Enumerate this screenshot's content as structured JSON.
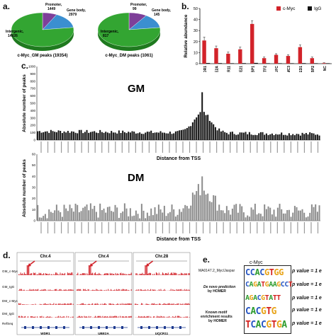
{
  "panels": {
    "a": {
      "letter": "a.",
      "pies": [
        {
          "caption": "c-Myc_GM peaks (19354)",
          "slices": [
            {
              "name": "Promoter",
              "value": 1449,
              "label_name": "Promoter,",
              "label_value": "1449",
              "color": "#7e3f99"
            },
            {
              "name": "Gene body",
              "value": 2979,
              "label_name": "Gene body,",
              "label_value": "2979",
              "color": "#3b8fd0"
            },
            {
              "name": "Intergenic",
              "value": 14926,
              "label_name": "Intergenic,",
              "label_value": "14926",
              "color": "#33a532"
            }
          ]
        },
        {
          "caption": "c-Myc_DM peaks (1061)",
          "slices": [
            {
              "name": "Promoter",
              "value": 99,
              "label_name": "Promoter,",
              "label_value": "99",
              "color": "#7e3f99"
            },
            {
              "name": "Gene body",
              "value": 145,
              "label_name": "Gene body,",
              "label_value": "145",
              "color": "#3b8fd0"
            },
            {
              "name": "Intergenic",
              "value": 817,
              "label_name": "Intergenic,",
              "label_value": "817",
              "color": "#33a532"
            }
          ]
        }
      ]
    },
    "b": {
      "letter": "b.",
      "ylabel": "Relative abundance",
      "legend": [
        {
          "name": "c-Myc",
          "color": "#d2232a"
        },
        {
          "name": "IgG",
          "color": "#111111"
        }
      ]
    },
    "c": {
      "letter": "c.",
      "ylabel": "Absolute number of peaks",
      "xlabel": "Distance from TSS",
      "gm_label": "GM",
      "dm_label": "DM",
      "gm_color": "#111111",
      "dm_color": "#8c8c8c"
    },
    "d": {
      "letter": "d.",
      "chroms": [
        "Chr.4",
        "Chr.4",
        "Chr.28"
      ],
      "tracks": [
        "GM_c-Myc",
        "GM_IgG",
        "DM_c-Myc",
        "DM_IgG",
        "RefSeq"
      ],
      "genes": [
        "WDR1",
        "UBE2A",
        "UQCR11"
      ],
      "track_color": "#d2232a",
      "arrow_color": "#d2232a"
    },
    "e": {
      "letter": "e.",
      "title": "c-Myc",
      "matrix_label": "MA0147.2_Myc/Jaspar",
      "denovo_label_1": "De novo prediction",
      "denovo_label_2": "by HOMER",
      "known_label_1": "Known motif",
      "known_label_2": "enrichment results",
      "known_label_3": "by HOMER",
      "motifs": [
        "CCACGTGG",
        "CAGATGAAGCCT",
        "AGACGTATT",
        "CACGTG",
        "TCACGTGA"
      ],
      "pvalues": [
        "p value = 1 e",
        "p value = 1 e",
        "p value = 1 e",
        "p value = 1 e",
        "p value = 1 e"
      ]
    }
  },
  "chart_data": [
    {
      "type": "pie",
      "title": "c-Myc_GM peaks (19354)",
      "categories": [
        "Promoter",
        "Gene body",
        "Intergenic"
      ],
      "values": [
        1449,
        2979,
        14926
      ]
    },
    {
      "type": "pie",
      "title": "c-Myc_DM peaks (1061)",
      "categories": [
        "Promoter",
        "Gene body",
        "Intergenic"
      ],
      "values": [
        99,
        145,
        817
      ]
    },
    {
      "type": "bar",
      "ylabel": "Relative abundance",
      "ylim": [
        0,
        50
      ],
      "yticks": [
        0,
        10,
        20,
        30,
        40,
        50
      ],
      "categories": [
        "WDR1",
        "UBE2A",
        "UQCR11",
        "ZFYVE21",
        "FUBP1",
        "ATF2",
        "NDUFC",
        "HEMC3",
        "MED1",
        "RBBP2",
        "NC"
      ],
      "series": [
        {
          "name": "c-Myc",
          "values": [
            21,
            14,
            9,
            13,
            36,
            5,
            8,
            7,
            15,
            5,
            0.5
          ],
          "errors": [
            3,
            2,
            1.5,
            2,
            3,
            1,
            1,
            1,
            2,
            1,
            0.3
          ]
        },
        {
          "name": "IgG",
          "values": [
            0.6,
            0.5,
            0.4,
            0.5,
            0.7,
            0.4,
            0.4,
            0.4,
            0.5,
            0.4,
            0.4
          ]
        }
      ]
    },
    {
      "type": "bar",
      "title": "GM",
      "ylabel": "Absolute number of peaks",
      "xlabel": "Distance from TSS",
      "ylim": [
        0,
        1000
      ],
      "yticks": [
        0,
        100,
        200,
        300,
        400,
        500,
        600,
        700,
        800,
        900,
        1000
      ],
      "peak_value": 650,
      "bins": 150
    },
    {
      "type": "bar",
      "title": "DM",
      "ylabel": "Absolute number of peaks",
      "xlabel": "Distance from TSS",
      "ylim": [
        0,
        60
      ],
      "yticks": [
        0,
        10,
        20,
        30,
        40,
        50,
        60
      ],
      "peak_value": 40,
      "bins": 150
    }
  ]
}
